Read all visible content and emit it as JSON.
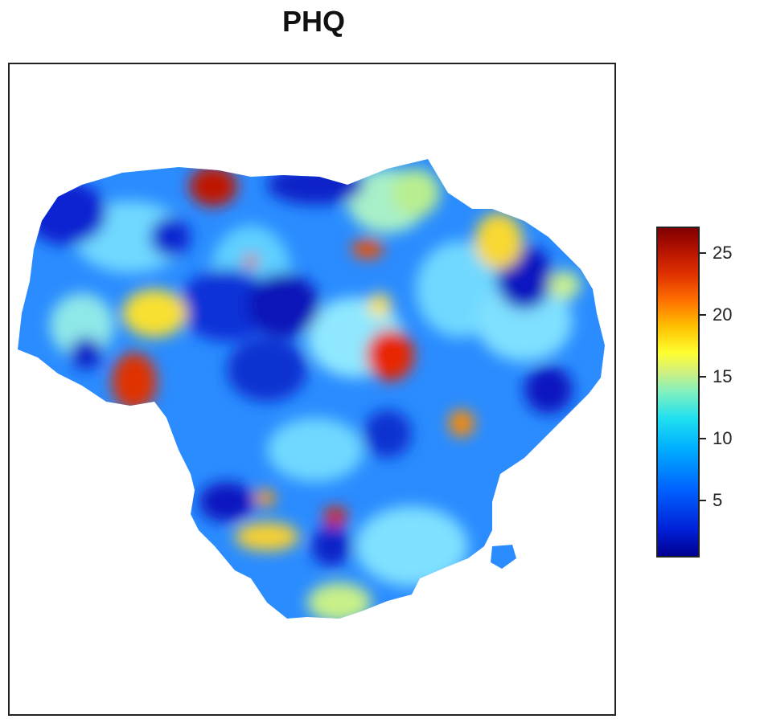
{
  "map": {
    "title": "PHQ"
  },
  "legend": {
    "ticks": [
      {
        "label": "25",
        "value": 25
      },
      {
        "label": "20",
        "value": 20
      },
      {
        "label": "15",
        "value": 15
      },
      {
        "label": "10",
        "value": 10
      },
      {
        "label": "5",
        "value": 5
      }
    ],
    "range": [
      0.5,
      27
    ],
    "colors": [
      "#00008f",
      "#0060ff",
      "#20e0f0",
      "#ffff30",
      "#ff7000",
      "#800000"
    ]
  }
}
